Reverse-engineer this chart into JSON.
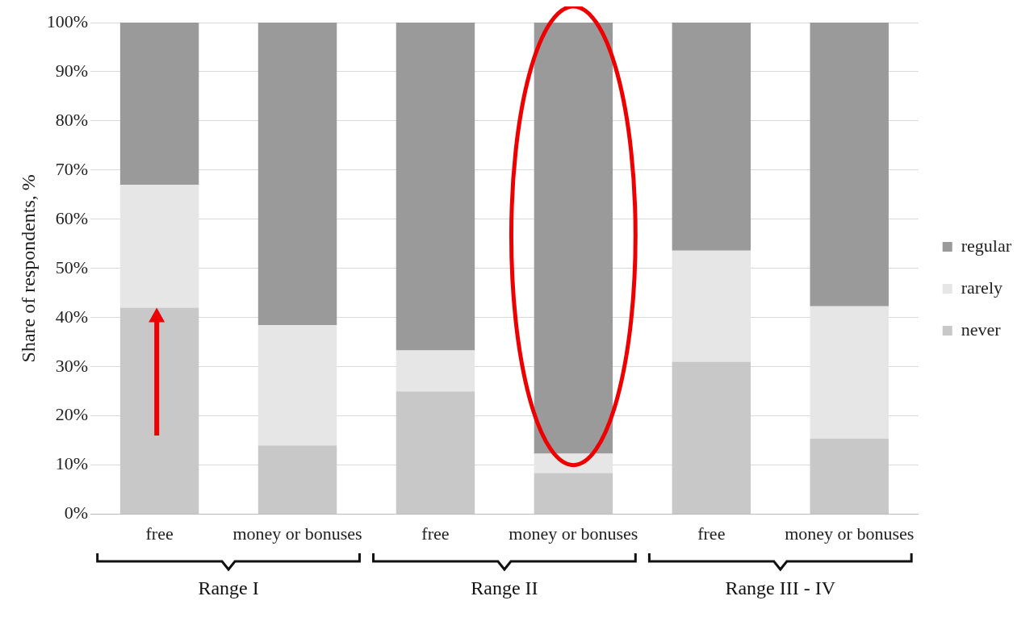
{
  "chart_data": {
    "type": "bar",
    "stacked": true,
    "ylabel": "Share of respondents, %",
    "categories": [
      "free",
      "money or bonuses",
      "free",
      "money or bonuses",
      "free",
      "money or bonuses"
    ],
    "series": [
      {
        "name": "never",
        "color": "#c8c8c8",
        "values": [
          42,
          14,
          25,
          8.4,
          31,
          15.4
        ]
      },
      {
        "name": "rarely",
        "color": "#e6e6e6",
        "values": [
          25,
          24.5,
          8.3,
          3.9,
          22.6,
          26.9
        ]
      },
      {
        "name": "regular",
        "color": "#9a9a9a",
        "values": [
          33,
          61.5,
          66.7,
          87.7,
          46.4,
          57.7
        ]
      }
    ],
    "ylim": [
      0,
      100
    ],
    "yticks": [
      {
        "value": 0,
        "label": "0%"
      },
      {
        "value": 10,
        "label": "10%"
      },
      {
        "value": 20,
        "label": "20%"
      },
      {
        "value": 30,
        "label": "30%"
      },
      {
        "value": 40,
        "label": "40%"
      },
      {
        "value": 50,
        "label": "50%"
      },
      {
        "value": 60,
        "label": "60%"
      },
      {
        "value": 70,
        "label": "70%"
      },
      {
        "value": 80,
        "label": "80%"
      },
      {
        "value": 90,
        "label": "90%"
      },
      {
        "value": 100,
        "label": "100%"
      }
    ],
    "grid": "y",
    "legend": "right",
    "annotations": [
      "Range I",
      "Range II",
      "Range III - IV"
    ]
  }
}
